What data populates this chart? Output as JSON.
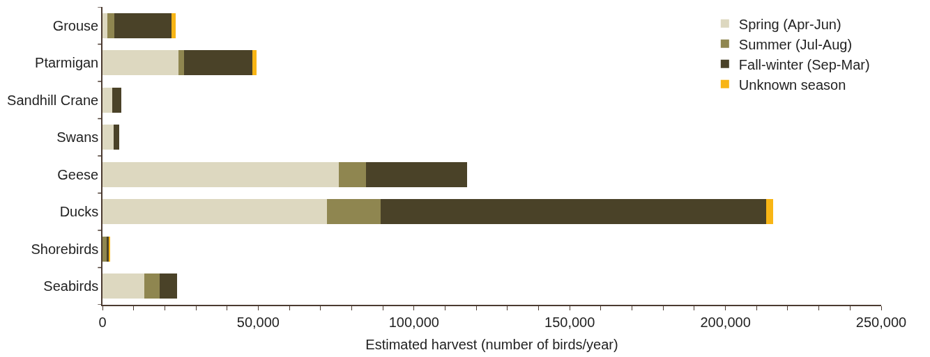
{
  "chart_data": {
    "type": "bar",
    "orientation": "horizontal",
    "stacked": true,
    "xlabel": "Estimated harvest (number of birds/year)",
    "categories": [
      "Grouse",
      "Ptarmigan",
      "Sandhill Crane",
      "Swans",
      "Geese",
      "Ducks",
      "Shorebirds",
      "Seabirds"
    ],
    "series": [
      {
        "name": "Spring (Apr-Jun)",
        "color": "#ddd8c0",
        "values": [
          1500,
          24300,
          3100,
          3500,
          75800,
          72000,
          0,
          13500
        ]
      },
      {
        "name": "Summer (Jul-Aug)",
        "color": "#8f8650",
        "values": [
          2300,
          1800,
          0,
          0,
          8900,
          17400,
          1300,
          4800
        ]
      },
      {
        "name": "Fall-winter (Sep-Mar)",
        "color": "#4a4228",
        "values": [
          18300,
          22000,
          3000,
          1900,
          32300,
          123600,
          900,
          5700
        ]
      },
      {
        "name": "Unknown season",
        "color": "#f8b515",
        "values": [
          1400,
          1400,
          0,
          0,
          0,
          2200,
          300,
          0
        ]
      }
    ],
    "xlim": [
      0,
      250000
    ],
    "xticks": [
      0,
      {
        "value": 10000,
        "label": null
      },
      {
        "value": 20000,
        "label": null
      },
      {
        "value": 30000,
        "label": null
      },
      {
        "value": 40000,
        "label": null
      },
      {
        "value": 50000,
        "label": "50,000"
      },
      {
        "value": 60000,
        "label": null
      },
      {
        "value": 70000,
        "label": null
      },
      {
        "value": 80000,
        "label": null
      },
      {
        "value": 90000,
        "label": null
      },
      {
        "value": 100000,
        "label": "100,000"
      },
      {
        "value": 110000,
        "label": null
      },
      {
        "value": 120000,
        "label": null
      },
      {
        "value": 130000,
        "label": null
      },
      {
        "value": 140000,
        "label": null
      },
      {
        "value": 150000,
        "label": "150,000"
      },
      {
        "value": 160000,
        "label": null
      },
      {
        "value": 170000,
        "label": null
      },
      {
        "value": 180000,
        "label": null
      },
      {
        "value": 190000,
        "label": null
      },
      {
        "value": 200000,
        "label": "200,000"
      },
      {
        "value": 210000,
        "label": null
      },
      {
        "value": 220000,
        "label": null
      },
      {
        "value": 230000,
        "label": null
      },
      {
        "value": 240000,
        "label": null
      },
      {
        "value": 250000,
        "label": "250,000"
      }
    ],
    "legend": "top right"
  }
}
